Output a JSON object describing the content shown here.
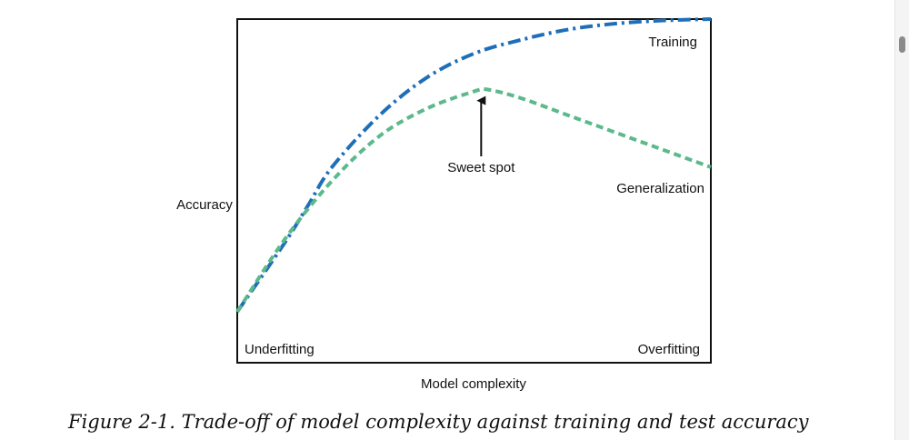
{
  "caption": "Figure 2-1. Trade-off of model complexity against training and test accuracy",
  "chart_data": {
    "type": "line",
    "title": "",
    "xlabel": "Model complexity",
    "ylabel": "Accuracy",
    "xlim": [
      0,
      100
    ],
    "ylim": [
      0,
      100
    ],
    "grid": false,
    "legend": "none",
    "series": [
      {
        "name": "Training",
        "color": "#1f6fb8",
        "style": "dash-dot",
        "x": [
          0,
          10,
          15,
          20,
          30,
          40,
          50,
          60,
          70,
          80,
          90,
          100
        ],
        "y": [
          15,
          35,
          46,
          57,
          72,
          83,
          90,
          94,
          97,
          98.7,
          99.6,
          100
        ]
      },
      {
        "name": "Generalization",
        "color": "#5bb98b",
        "style": "dash",
        "x": [
          0,
          10,
          20,
          30,
          40,
          50,
          53,
          60,
          70,
          80,
          90,
          100
        ],
        "y": [
          15,
          36,
          53,
          66,
          74,
          79,
          79.5,
          77,
          72,
          67,
          62,
          57
        ]
      }
    ],
    "annotations": [
      {
        "text": "Training",
        "placement": "top-right"
      },
      {
        "text": "Generalization",
        "placement": "right"
      },
      {
        "text": "Sweet spot",
        "arrow_to": {
          "x": 51.5,
          "y": 79.5
        }
      },
      {
        "text": "Underfitting",
        "placement": "bottom-left"
      },
      {
        "text": "Overfitting",
        "placement": "bottom-right"
      }
    ]
  }
}
